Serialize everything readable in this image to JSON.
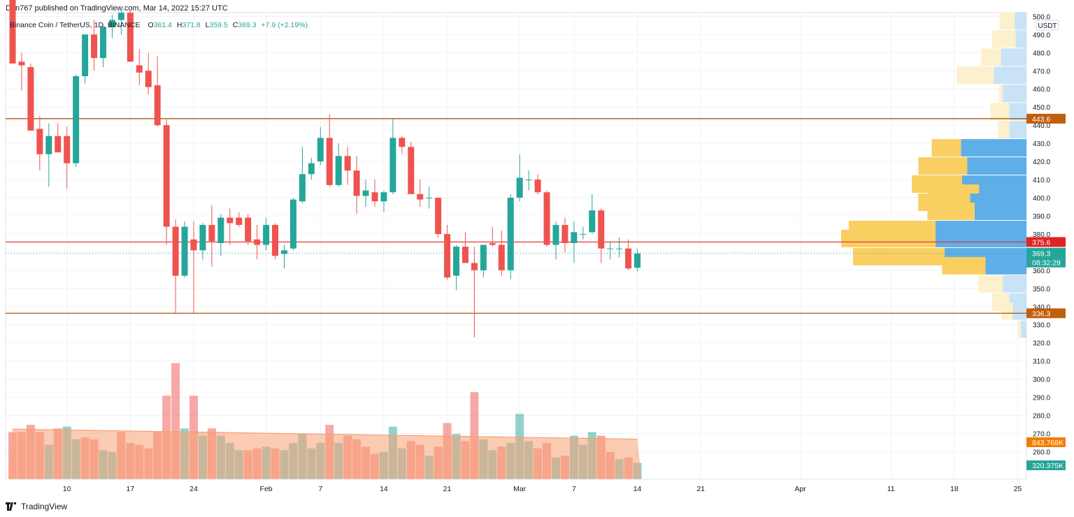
{
  "header": {
    "published_by": "Den767 published on TradingView.com, Mar 14, 2022 15:27 UTC"
  },
  "legend": {
    "symbol": "Binance Coin / TetherUS, 1D, BINANCE",
    "o_label": "O",
    "o": "361.4",
    "h_label": "H",
    "h": "371.8",
    "l_label": "L",
    "l": "359.5",
    "c_label": "C",
    "c": "369.3",
    "change": "+7.9 (+2.19%)"
  },
  "currency_label": "USDT",
  "price_axis_ticks": [
    "500.0",
    "490.0",
    "480.0",
    "470.0",
    "460.0",
    "450.0",
    "440.0",
    "430.0",
    "420.0",
    "410.0",
    "400.0",
    "390.0",
    "380.0",
    "360.0",
    "350.0",
    "340.0",
    "330.0",
    "320.0",
    "310.0",
    "300.0",
    "290.0",
    "280.0",
    "270.0",
    "260.0"
  ],
  "time_axis_ticks": [
    "10",
    "17",
    "24",
    "Feb",
    "7",
    "14",
    "21",
    "Mar",
    "7",
    "14",
    "21",
    "Apr",
    "11",
    "18",
    "25"
  ],
  "level_badges": {
    "resistance_upper": "443.6",
    "resistance_mid": "375.6",
    "last_price": "369.3",
    "countdown": "08:32:29",
    "support": "336.3",
    "volume_ma": "843.768K",
    "volume_last": "320.375K"
  },
  "footer": {
    "brand": "TradingView",
    "logo_icon": "tradingview-logo-icon"
  },
  "colors": {
    "up": "#26a69a",
    "down": "#ef5350",
    "orange_line": "#b45309",
    "red_line": "#e53935",
    "vol_ma_fill": "#f7a072",
    "vp_up_val": "#5eaee8",
    "vp_down_val": "#f9cf61",
    "vp_up": "#c8e3f5",
    "vp_down": "#fdf0cc"
  },
  "chart_data": {
    "type": "candlestick",
    "symbol": "BNBUSDT",
    "timeframe": "1D",
    "y_axis": {
      "min": 255,
      "max": 503,
      "unit": "USDT"
    },
    "x_axis": {
      "start_date": "2022-01-04",
      "end_date": "2022-03-29"
    },
    "horizontal_levels": [
      {
        "price": 443.6,
        "color": "orange"
      },
      {
        "price": 375.6,
        "color": "red"
      },
      {
        "price": 336.3,
        "color": "orange"
      }
    ],
    "last_price": 369.3,
    "candles": [
      {
        "date": "2022-01-04",
        "o": 512,
        "h": 515,
        "l": 474,
        "c": 474
      },
      {
        "date": "2022-01-05",
        "o": 475,
        "h": 480,
        "l": 459,
        "c": 473
      },
      {
        "date": "2022-01-06",
        "o": 472,
        "h": 474,
        "l": 438,
        "c": 437
      },
      {
        "date": "2022-01-07",
        "o": 438,
        "h": 445,
        "l": 415,
        "c": 424
      },
      {
        "date": "2022-01-08",
        "o": 424,
        "h": 441,
        "l": 406,
        "c": 434
      },
      {
        "date": "2022-01-09",
        "o": 434,
        "h": 441,
        "l": 425,
        "c": 425
      },
      {
        "date": "2022-01-10",
        "o": 434,
        "h": 439,
        "l": 405,
        "c": 419
      },
      {
        "date": "2022-01-11",
        "o": 419,
        "h": 468,
        "l": 417,
        "c": 467
      },
      {
        "date": "2022-01-12",
        "o": 467,
        "h": 490,
        "l": 463,
        "c": 490
      },
      {
        "date": "2022-01-13",
        "o": 490,
        "h": 498,
        "l": 470,
        "c": 477
      },
      {
        "date": "2022-01-14",
        "o": 477,
        "h": 495,
        "l": 472,
        "c": 494
      },
      {
        "date": "2022-01-15",
        "o": 494,
        "h": 501,
        "l": 488,
        "c": 498
      },
      {
        "date": "2022-01-16",
        "o": 498,
        "h": 504,
        "l": 490,
        "c": 502
      },
      {
        "date": "2022-01-17",
        "o": 502,
        "h": 503,
        "l": 475,
        "c": 475
      },
      {
        "date": "2022-01-18",
        "o": 473,
        "h": 482,
        "l": 462,
        "c": 469
      },
      {
        "date": "2022-01-19",
        "o": 470,
        "h": 480,
        "l": 457,
        "c": 461
      },
      {
        "date": "2022-01-20",
        "o": 462,
        "h": 478,
        "l": 439,
        "c": 440
      },
      {
        "date": "2022-01-21",
        "o": 440,
        "h": 443,
        "l": 374,
        "c": 384
      },
      {
        "date": "2022-01-22",
        "o": 384,
        "h": 388,
        "l": 336,
        "c": 357
      },
      {
        "date": "2022-01-23",
        "o": 357,
        "h": 387,
        "l": 356,
        "c": 384
      },
      {
        "date": "2022-01-24",
        "o": 377,
        "h": 387,
        "l": 336,
        "c": 371
      },
      {
        "date": "2022-01-25",
        "o": 371,
        "h": 386,
        "l": 366,
        "c": 385
      },
      {
        "date": "2022-01-26",
        "o": 385,
        "h": 396,
        "l": 362,
        "c": 376
      },
      {
        "date": "2022-01-27",
        "o": 375,
        "h": 391,
        "l": 368,
        "c": 389
      },
      {
        "date": "2022-01-28",
        "o": 389,
        "h": 394,
        "l": 374,
        "c": 386
      },
      {
        "date": "2022-01-29",
        "o": 389,
        "h": 392,
        "l": 384,
        "c": 385
      },
      {
        "date": "2022-01-30",
        "o": 389,
        "h": 391,
        "l": 374,
        "c": 376
      },
      {
        "date": "2022-01-31",
        "o": 377,
        "h": 385,
        "l": 366,
        "c": 374
      },
      {
        "date": "2022-02-01",
        "o": 374,
        "h": 389,
        "l": 371,
        "c": 385
      },
      {
        "date": "2022-02-02",
        "o": 385,
        "h": 386,
        "l": 366,
        "c": 368
      },
      {
        "date": "2022-02-03",
        "o": 369,
        "h": 374,
        "l": 361,
        "c": 371
      },
      {
        "date": "2022-02-04",
        "o": 372,
        "h": 400,
        "l": 371,
        "c": 399
      },
      {
        "date": "2022-02-05",
        "o": 398,
        "h": 428,
        "l": 397,
        "c": 413
      },
      {
        "date": "2022-02-06",
        "o": 413,
        "h": 422,
        "l": 410,
        "c": 419
      },
      {
        "date": "2022-02-07",
        "o": 420,
        "h": 439,
        "l": 418,
        "c": 433
      },
      {
        "date": "2022-02-08",
        "o": 433,
        "h": 446,
        "l": 406,
        "c": 407
      },
      {
        "date": "2022-02-09",
        "o": 407,
        "h": 430,
        "l": 406,
        "c": 423
      },
      {
        "date": "2022-02-10",
        "o": 423,
        "h": 428,
        "l": 407,
        "c": 415
      },
      {
        "date": "2022-02-11",
        "o": 415,
        "h": 423,
        "l": 391,
        "c": 401
      },
      {
        "date": "2022-02-12",
        "o": 401,
        "h": 410,
        "l": 395,
        "c": 404
      },
      {
        "date": "2022-02-13",
        "o": 403,
        "h": 410,
        "l": 395,
        "c": 398
      },
      {
        "date": "2022-02-14",
        "o": 398,
        "h": 404,
        "l": 392,
        "c": 403
      },
      {
        "date": "2022-02-15",
        "o": 403,
        "h": 444,
        "l": 402,
        "c": 433
      },
      {
        "date": "2022-02-16",
        "o": 433,
        "h": 434,
        "l": 424,
        "c": 428
      },
      {
        "date": "2022-02-17",
        "o": 428,
        "h": 431,
        "l": 402,
        "c": 402
      },
      {
        "date": "2022-02-18",
        "o": 402,
        "h": 410,
        "l": 395,
        "c": 399
      },
      {
        "date": "2022-02-19",
        "o": 400,
        "h": 406,
        "l": 394,
        "c": 400
      },
      {
        "date": "2022-02-20",
        "o": 400,
        "h": 400,
        "l": 378,
        "c": 380
      },
      {
        "date": "2022-02-21",
        "o": 380,
        "h": 385,
        "l": 355,
        "c": 356
      },
      {
        "date": "2022-02-22",
        "o": 357,
        "h": 374,
        "l": 349,
        "c": 373
      },
      {
        "date": "2022-02-23",
        "o": 373,
        "h": 381,
        "l": 366,
        "c": 364
      },
      {
        "date": "2022-02-24",
        "o": 364,
        "h": 373,
        "l": 323,
        "c": 360
      },
      {
        "date": "2022-02-25",
        "o": 360,
        "h": 374,
        "l": 356,
        "c": 374
      },
      {
        "date": "2022-02-26",
        "o": 375,
        "h": 384,
        "l": 373,
        "c": 374
      },
      {
        "date": "2022-02-27",
        "o": 374,
        "h": 382,
        "l": 357,
        "c": 360
      },
      {
        "date": "2022-02-28",
        "o": 360,
        "h": 402,
        "l": 355,
        "c": 400
      },
      {
        "date": "2022-03-01",
        "o": 400,
        "h": 424,
        "l": 398,
        "c": 411
      },
      {
        "date": "2022-03-02",
        "o": 410,
        "h": 415,
        "l": 404,
        "c": 410
      },
      {
        "date": "2022-03-03",
        "o": 410,
        "h": 413,
        "l": 402,
        "c": 403
      },
      {
        "date": "2022-03-04",
        "o": 403,
        "h": 404,
        "l": 373,
        "c": 374
      },
      {
        "date": "2022-03-05",
        "o": 374,
        "h": 387,
        "l": 366,
        "c": 385
      },
      {
        "date": "2022-03-06",
        "o": 385,
        "h": 389,
        "l": 370,
        "c": 375
      },
      {
        "date": "2022-03-07",
        "o": 375,
        "h": 387,
        "l": 364,
        "c": 381
      },
      {
        "date": "2022-03-08",
        "o": 380,
        "h": 384,
        "l": 377,
        "c": 380
      },
      {
        "date": "2022-03-09",
        "o": 381,
        "h": 402,
        "l": 380,
        "c": 393
      },
      {
        "date": "2022-03-10",
        "o": 393,
        "h": 394,
        "l": 364,
        "c": 372
      },
      {
        "date": "2022-03-11",
        "o": 372,
        "h": 376,
        "l": 366,
        "c": 372
      },
      {
        "date": "2022-03-12",
        "o": 372,
        "h": 378,
        "l": 367,
        "c": 372
      },
      {
        "date": "2022-03-13",
        "o": 372,
        "h": 377,
        "l": 360,
        "c": 361
      },
      {
        "date": "2022-03-14",
        "o": 361.4,
        "h": 371.8,
        "l": 359.5,
        "c": 369.3
      }
    ],
    "volume_panel": {
      "volume_ma": "843.768K",
      "last_volume": "320.375K",
      "bars": [
        {
          "date": "2022-01-04",
          "v": 1.3,
          "dir": "down"
        },
        {
          "date": "2022-01-05",
          "v": 1.3,
          "dir": "down"
        },
        {
          "date": "2022-01-06",
          "v": 1.5,
          "dir": "down"
        },
        {
          "date": "2022-01-07",
          "v": 1.3,
          "dir": "down"
        },
        {
          "date": "2022-01-08",
          "v": 0.95,
          "dir": "up"
        },
        {
          "date": "2022-01-09",
          "v": 1.4,
          "dir": "down"
        },
        {
          "date": "2022-01-10",
          "v": 1.45,
          "dir": "up"
        },
        {
          "date": "2022-01-11",
          "v": 1.1,
          "dir": "up"
        },
        {
          "date": "2022-01-12",
          "v": 1.15,
          "dir": "down"
        },
        {
          "date": "2022-01-13",
          "v": 1.1,
          "dir": "down"
        },
        {
          "date": "2022-01-14",
          "v": 0.8,
          "dir": "up"
        },
        {
          "date": "2022-01-15",
          "v": 0.75,
          "dir": "up"
        },
        {
          "date": "2022-01-16",
          "v": 1.3,
          "dir": "down"
        },
        {
          "date": "2022-01-17",
          "v": 1.0,
          "dir": "down"
        },
        {
          "date": "2022-01-18",
          "v": 0.95,
          "dir": "down"
        },
        {
          "date": "2022-01-19",
          "v": 0.85,
          "dir": "down"
        },
        {
          "date": "2022-01-20",
          "v": 1.3,
          "dir": "down"
        },
        {
          "date": "2022-01-21",
          "v": 2.3,
          "dir": "down"
        },
        {
          "date": "2022-01-22",
          "v": 3.2,
          "dir": "down"
        },
        {
          "date": "2022-01-23",
          "v": 1.4,
          "dir": "up"
        },
        {
          "date": "2022-01-24",
          "v": 2.3,
          "dir": "down"
        },
        {
          "date": "2022-01-25",
          "v": 1.2,
          "dir": "up"
        },
        {
          "date": "2022-01-26",
          "v": 1.4,
          "dir": "down"
        },
        {
          "date": "2022-01-27",
          "v": 1.2,
          "dir": "up"
        },
        {
          "date": "2022-01-28",
          "v": 1.0,
          "dir": "up"
        },
        {
          "date": "2022-01-29",
          "v": 0.8,
          "dir": "up"
        },
        {
          "date": "2022-01-30",
          "v": 0.8,
          "dir": "down"
        },
        {
          "date": "2022-01-31",
          "v": 0.85,
          "dir": "down"
        },
        {
          "date": "2022-02-01",
          "v": 0.9,
          "dir": "up"
        },
        {
          "date": "2022-02-02",
          "v": 0.85,
          "dir": "down"
        },
        {
          "date": "2022-02-03",
          "v": 0.8,
          "dir": "up"
        },
        {
          "date": "2022-02-04",
          "v": 1.0,
          "dir": "up"
        },
        {
          "date": "2022-02-05",
          "v": 1.25,
          "dir": "up"
        },
        {
          "date": "2022-02-06",
          "v": 0.85,
          "dir": "up"
        },
        {
          "date": "2022-02-07",
          "v": 1.0,
          "dir": "up"
        },
        {
          "date": "2022-02-08",
          "v": 1.5,
          "dir": "down"
        },
        {
          "date": "2022-02-09",
          "v": 1.0,
          "dir": "up"
        },
        {
          "date": "2022-02-10",
          "v": 1.2,
          "dir": "down"
        },
        {
          "date": "2022-02-11",
          "v": 1.1,
          "dir": "down"
        },
        {
          "date": "2022-02-12",
          "v": 0.9,
          "dir": "down"
        },
        {
          "date": "2022-02-13",
          "v": 0.7,
          "dir": "down"
        },
        {
          "date": "2022-02-14",
          "v": 0.75,
          "dir": "up"
        },
        {
          "date": "2022-02-15",
          "v": 1.45,
          "dir": "up"
        },
        {
          "date": "2022-02-16",
          "v": 0.85,
          "dir": "up"
        },
        {
          "date": "2022-02-17",
          "v": 1.05,
          "dir": "down"
        },
        {
          "date": "2022-02-18",
          "v": 0.95,
          "dir": "down"
        },
        {
          "date": "2022-02-19",
          "v": 0.65,
          "dir": "up"
        },
        {
          "date": "2022-02-20",
          "v": 0.9,
          "dir": "down"
        },
        {
          "date": "2022-02-21",
          "v": 1.55,
          "dir": "down"
        },
        {
          "date": "2022-02-22",
          "v": 1.25,
          "dir": "up"
        },
        {
          "date": "2022-02-23",
          "v": 1.05,
          "dir": "down"
        },
        {
          "date": "2022-02-24",
          "v": 2.4,
          "dir": "down"
        },
        {
          "date": "2022-02-25",
          "v": 1.1,
          "dir": "up"
        },
        {
          "date": "2022-02-26",
          "v": 0.8,
          "dir": "up"
        },
        {
          "date": "2022-02-27",
          "v": 0.9,
          "dir": "down"
        },
        {
          "date": "2022-02-28",
          "v": 1.0,
          "dir": "up"
        },
        {
          "date": "2022-03-01",
          "v": 1.8,
          "dir": "up"
        },
        {
          "date": "2022-03-02",
          "v": 1.05,
          "dir": "up"
        },
        {
          "date": "2022-03-03",
          "v": 0.85,
          "dir": "down"
        },
        {
          "date": "2022-03-04",
          "v": 1.0,
          "dir": "down"
        },
        {
          "date": "2022-03-05",
          "v": 0.6,
          "dir": "up"
        },
        {
          "date": "2022-03-06",
          "v": 0.65,
          "dir": "down"
        },
        {
          "date": "2022-03-07",
          "v": 1.2,
          "dir": "up"
        },
        {
          "date": "2022-03-08",
          "v": 0.95,
          "dir": "up"
        },
        {
          "date": "2022-03-09",
          "v": 1.3,
          "dir": "up"
        },
        {
          "date": "2022-03-10",
          "v": 1.2,
          "dir": "down"
        },
        {
          "date": "2022-03-11",
          "v": 0.75,
          "dir": "down"
        },
        {
          "date": "2022-03-12",
          "v": 0.55,
          "dir": "up"
        },
        {
          "date": "2022-03-13",
          "v": 0.6,
          "dir": "down"
        },
        {
          "date": "2022-03-14",
          "v": 0.45,
          "dir": "up"
        }
      ]
    },
    "volume_profile": [
      {
        "price": 497.5,
        "up": 0.13,
        "down": 0.16
      },
      {
        "price": 487.5,
        "up": 0.12,
        "down": 0.25
      },
      {
        "price": 477.5,
        "up": 0.28,
        "down": 0.21
      },
      {
        "price": 467.5,
        "up": 0.36,
        "down": 0.39
      },
      {
        "price": 457.5,
        "up": 0.26,
        "down": 0.04
      },
      {
        "price": 447.5,
        "up": 0.19,
        "down": 0.2
      },
      {
        "price": 437.5,
        "up": 0.19,
        "down": 0.12
      },
      {
        "price": 427.5,
        "up": 0.72,
        "down": 0.31
      },
      {
        "price": 417.5,
        "up": 0.65,
        "down": 0.52
      },
      {
        "price": 407.5,
        "up": 0.71,
        "down": 0.53
      },
      {
        "price": 402.5,
        "up": 0.52,
        "down": 0.55
      },
      {
        "price": 397.5,
        "up": 0.62,
        "down": 0.55
      },
      {
        "price": 392.5,
        "up": 0.57,
        "down": 0.5
      },
      {
        "price": 382.5,
        "up": 1.0,
        "down": 0.92
      },
      {
        "price": 377.5,
        "up": 1.0,
        "down": 1.0
      },
      {
        "price": 367.5,
        "up": 0.9,
        "down": 0.97
      },
      {
        "price": 362.5,
        "up": 0.45,
        "down": 0.46
      },
      {
        "price": 352.5,
        "up": 0.26,
        "down": 0.26
      },
      {
        "price": 342.5,
        "up": 0.19,
        "down": 0.18
      },
      {
        "price": 337.5,
        "up": 0.15,
        "down": 0.12
      },
      {
        "price": 327.5,
        "up": 0.06,
        "down": 0.03
      }
    ]
  }
}
